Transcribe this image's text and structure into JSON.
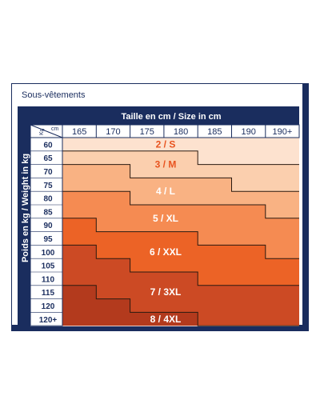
{
  "title": "Sous-vêtements",
  "header": "Taille en cm / Size in cm",
  "side_label": "Poids en kg / Weight in kg",
  "corner": {
    "kg": "Kg",
    "cm": "cm"
  },
  "heights": [
    "165",
    "170",
    "175",
    "180",
    "185",
    "190",
    "190+"
  ],
  "weights": [
    "60",
    "65",
    "70",
    "75",
    "80",
    "85",
    "90",
    "95",
    "100",
    "105",
    "110",
    "115",
    "120",
    "120+"
  ],
  "zones": [
    {
      "label": "2 / S",
      "color": "#fde2cf",
      "label_color": "#e8531f"
    },
    {
      "label": "3 / M",
      "color": "#fbcfae",
      "label_color": "#e8531f"
    },
    {
      "label": "4 / L",
      "color": "#f9b283",
      "label_color": "#ffffff"
    },
    {
      "label": "5 / XL",
      "color": "#f58b52",
      "label_color": "#ffffff"
    },
    {
      "label": "6 / XXL",
      "color": "#ec6326",
      "label_color": "#ffffff"
    },
    {
      "label": "7 / 3XL",
      "color": "#cc4a24",
      "label_color": "#ffffff"
    },
    {
      "label": "8 / 4XL",
      "color": "#b33a1d",
      "label_color": "#ffffff"
    }
  ],
  "colors": {
    "navy": "#1a2d5e"
  }
}
